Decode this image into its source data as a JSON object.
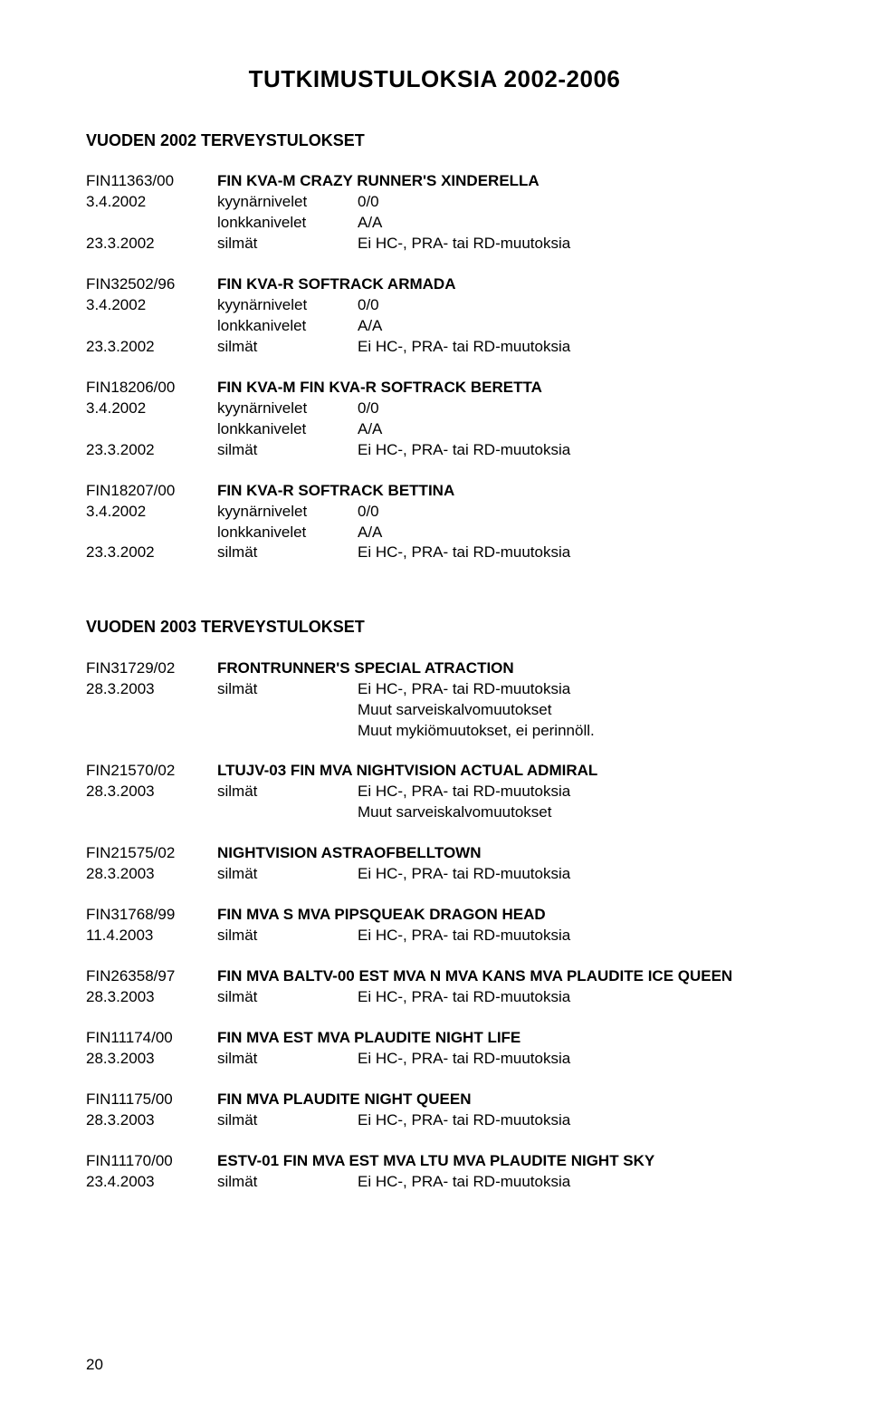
{
  "page": {
    "title": "TUTKIMUSTULOKSIA 2002-2006",
    "number": "20"
  },
  "common": {
    "kyynarnivelet": "kyynärnivelet",
    "lonkkanivelet": "lonkkanivelet",
    "silmat": "silmät",
    "zerozero": "0/0",
    "aa": "A/A",
    "ei_hc": "Ei HC-, PRA- tai RD-muutoksia",
    "sarv": "Muut sarveiskalvomuutokset",
    "mykio": "Muut mykiömuutokset, ei perinnöll."
  },
  "sections": [
    {
      "heading": "VUODEN 2002 TERVEYSTULOKSET",
      "entries": [
        {
          "id": "FIN11363/00",
          "name": "FIN KVA-M CRAZY RUNNER'S XINDERELLA",
          "d1": "3.4.2002",
          "d2": "23.3.2002",
          "full": true
        },
        {
          "id": "FIN32502/96",
          "name": "FIN KVA-R SOFTRACK ARMADA",
          "d1": "3.4.2002",
          "d2": "23.3.2002",
          "full": true
        },
        {
          "id": "FIN18206/00",
          "name": "FIN KVA-M FIN KVA-R SOFTRACK BERETTA",
          "d1": "3.4.2002",
          "d2": "23.3.2002",
          "full": true
        },
        {
          "id": "FIN18207/00",
          "name": "FIN KVA-R SOFTRACK BETTINA",
          "d1": "3.4.2002",
          "d2": "23.3.2002",
          "full": true
        }
      ]
    },
    {
      "heading": "VUODEN 2003 TERVEYSTULOKSET",
      "entries": [
        {
          "id": "FIN31729/02",
          "name": "FRONTRUNNER'S SPECIAL ATRACTION",
          "d2": "28.3.2003",
          "notes": [
            "sarv",
            "mykio"
          ]
        },
        {
          "id": "FIN21570/02",
          "name": "LTUJV-03 FIN MVA NIGHTVISION ACTUAL ADMIRAL",
          "d2": "28.3.2003",
          "notes": [
            "sarv"
          ]
        },
        {
          "id": "FIN21575/02",
          "name": "NIGHTVISION ASTRAOFBELLTOWN",
          "d2": "28.3.2003"
        },
        {
          "id": "FIN31768/99",
          "name": "FIN MVA S MVA PIPSQUEAK DRAGON HEAD",
          "d2": "11.4.2003"
        },
        {
          "id": "FIN26358/97",
          "name": "FIN MVA BALTV-00 EST MVA N MVA KANS MVA PLAUDITE ICE QUEEN",
          "d2": "28.3.2003"
        },
        {
          "id": "FIN11174/00",
          "name": "FIN MVA EST MVA PLAUDITE NIGHT LIFE",
          "d2": "28.3.2003"
        },
        {
          "id": "FIN11175/00",
          "name": "FIN MVA PLAUDITE NIGHT QUEEN",
          "d2": "28.3.2003"
        },
        {
          "id": "FIN11170/00",
          "name": "ESTV-01 FIN MVA EST MVA LTU MVA PLAUDITE NIGHT SKY",
          "d2": "23.4.2003"
        }
      ]
    }
  ]
}
